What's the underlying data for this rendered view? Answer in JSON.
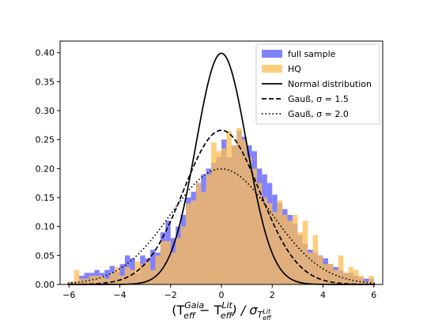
{
  "chart_data": {
    "type": "bar",
    "subtype": "histogram-with-curves",
    "title": "",
    "xlabel": "(T_eff^Gaia − T_eff^Lit) / σ_T_eff^Lit",
    "xlabel_parts": {
      "open": "(T",
      "sub1": "eff",
      "sup1": "Gaia",
      "minus": " − T",
      "sub2": "eff",
      "sup2": "Lit",
      "close": ") / σ",
      "sub3": "T",
      "sub3b": "eff",
      "sup3": "Lit"
    },
    "ylabel": "",
    "xlim": [
      -6.35,
      6.35
    ],
    "ylim": [
      0,
      0.42
    ],
    "xticks": [
      -6,
      -4,
      -2,
      0,
      2,
      4,
      6
    ],
    "xtick_labels": [
      "−6",
      "−4",
      "−2",
      "0",
      "2",
      "4",
      "6"
    ],
    "yticks": [
      0.0,
      0.05,
      0.1,
      0.15,
      0.2,
      0.25,
      0.3,
      0.35,
      0.4
    ],
    "ytick_labels": [
      "0.00",
      "0.05",
      "0.10",
      "0.15",
      "0.20",
      "0.25",
      "0.30",
      "0.35",
      "0.40"
    ],
    "bin_start": -6,
    "bin_width": 0.2,
    "series": [
      {
        "name": "full sample",
        "kind": "histogram",
        "color": "#7b7bff",
        "values": [
          0.005,
          0.005,
          0.015,
          0.02,
          0.02,
          0.025,
          0.02,
          0.025,
          0.032,
          0.022,
          0.035,
          0.05,
          0.045,
          0.02,
          0.05,
          0.045,
          0.06,
          0.055,
          0.09,
          0.11,
          0.08,
          0.1,
          0.12,
          0.15,
          0.16,
          0.175,
          0.19,
          0.2,
          0.21,
          0.22,
          0.25,
          0.22,
          0.24,
          0.265,
          0.255,
          0.24,
          0.23,
          0.2,
          0.19,
          0.175,
          0.155,
          0.14,
          0.13,
          0.12,
          0.105,
          0.085,
          0.07,
          0.06,
          0.055,
          0.05,
          0.045,
          0.035,
          0.03,
          0.025,
          0.02,
          0.02,
          0.015,
          0.012,
          0.01,
          0.01
        ]
      },
      {
        "name": "HQ",
        "kind": "histogram",
        "color": "#ffbe50",
        "values": [
          0.005,
          0.025,
          0.01,
          0.01,
          0.015,
          0.015,
          0.015,
          0.01,
          0.02,
          0.03,
          0.015,
          0.03,
          0.025,
          0.04,
          0.035,
          0.04,
          0.025,
          0.05,
          0.075,
          0.075,
          0.055,
          0.08,
          0.1,
          0.14,
          0.145,
          0.175,
          0.16,
          0.19,
          0.245,
          0.23,
          0.235,
          0.265,
          0.24,
          0.27,
          0.25,
          0.22,
          0.2,
          0.175,
          0.15,
          0.14,
          0.125,
          0.145,
          0.12,
          0.11,
          0.12,
          0.09,
          0.11,
          0.055,
          0.085,
          0.05,
          0.035,
          0.035,
          0.025,
          0.05,
          0.02,
          0.03,
          0.025,
          0.015,
          0.005,
          0.015
        ]
      },
      {
        "name": "Normal distribution",
        "kind": "curve",
        "color": "#000000",
        "dash": "solid",
        "sigma": 1.0,
        "mu": 0
      },
      {
        "name": "Gauß, σ = 1.5",
        "kind": "curve",
        "color": "#000000",
        "dash": "dashed",
        "sigma": 1.5,
        "mu": 0
      },
      {
        "name": "Gauß, σ = 2.0",
        "kind": "curve",
        "color": "#000000",
        "dash": "dotted",
        "sigma": 2.0,
        "mu": 0
      }
    ],
    "legend": {
      "placement": "top-right",
      "entries": [
        "full sample",
        "HQ",
        "Normal distribution",
        "Gauß, σ = 1.5",
        "Gauß, σ = 2.0"
      ]
    },
    "grid": false
  }
}
